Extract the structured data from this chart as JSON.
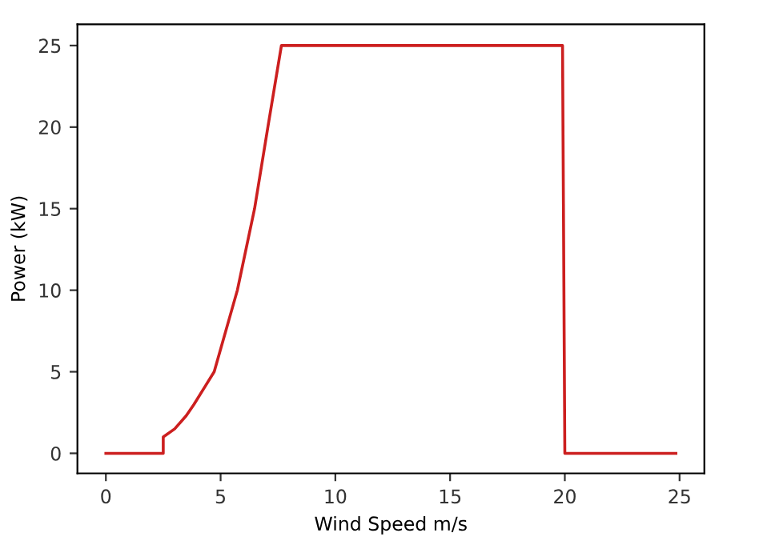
{
  "chart_data": {
    "type": "line",
    "xlabel": "Wind Speed m/s",
    "ylabel": "Power (kW)",
    "xlim": [
      -1.24,
      26.08
    ],
    "ylim": [
      -1.23,
      26.3
    ],
    "xticks": [
      0,
      5,
      10,
      15,
      20,
      25
    ],
    "yticks": [
      0,
      5,
      10,
      15,
      20,
      25
    ],
    "grid": false,
    "legend": false,
    "marker": "none",
    "line_style": "solid",
    "series": [
      {
        "color": "#cc1f1f",
        "x": [
          0,
          2.5,
          2.5,
          3.0,
          3.5,
          3.84,
          4.72,
          5.73,
          6.48,
          7.06,
          7.65,
          19.9,
          20.0,
          24.84
        ],
        "values": [
          0,
          0,
          1,
          1.5,
          2.3,
          3,
          5,
          10,
          15,
          20,
          25,
          25,
          0,
          0
        ]
      }
    ]
  }
}
